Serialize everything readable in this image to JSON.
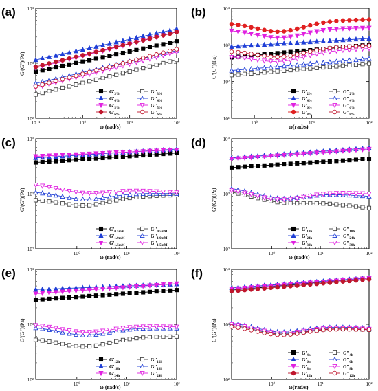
{
  "panels": [
    {
      "tag": "(a)",
      "xlabel": "ω (rad/s)",
      "ylabel": "G'(G'')(Pa)",
      "chart_data": {
        "type": "line",
        "xscale": "log",
        "yscale": "log",
        "xlim": [
          0.1,
          100
        ],
        "ylim": [
          100,
          10000
        ],
        "xticks": [
          "10⁻¹",
          "10⁰",
          "10¹",
          "10²"
        ],
        "yticks": [
          "10²",
          "10³",
          "10⁴"
        ],
        "legend_placement": "bottom-right",
        "series": [
          {
            "name": "G'",
            "sub": "3%",
            "color": "#000000",
            "marker": "square",
            "filled": true,
            "y0": 700,
            "y1": 2500
          },
          {
            "name": "G''",
            "sub": "3%",
            "color": "#444444",
            "marker": "square",
            "filled": false,
            "y0": 270,
            "y1": 1150
          },
          {
            "name": "G'",
            "sub": "4%",
            "color": "#1f3fd6",
            "marker": "triangle",
            "filled": true,
            "y0": 1150,
            "y1": 4200
          },
          {
            "name": "G''",
            "sub": "4%",
            "color": "#1f3fd6",
            "marker": "triangle",
            "filled": false,
            "y0": 430,
            "y1": 1700
          },
          {
            "name": "G'",
            "sub": "5%",
            "color": "#e020e0",
            "marker": "tri-down",
            "filled": true,
            "y0": 820,
            "y1": 3700
          },
          {
            "name": "G''",
            "sub": "5%",
            "color": "#e020e0",
            "marker": "tri-down",
            "filled": false,
            "y0": 360,
            "y1": 1600
          },
          {
            "name": "G'",
            "sub": "6%",
            "color": "#c0162d",
            "marker": "circle",
            "filled": true,
            "y0": 860,
            "y1": 3700
          },
          {
            "name": "G''",
            "sub": "6%",
            "color": "#c0162d",
            "marker": "circle",
            "filled": false,
            "y0": 380,
            "y1": 1800
          }
        ]
      }
    },
    {
      "tag": "(b)",
      "xlabel": "ω(rad/s)",
      "ylabel": "G'(G'')(Pa)",
      "chart_data": {
        "type": "line",
        "xscale": "log",
        "yscale": "log",
        "xlim": [
          0.4,
          100
        ],
        "ylim": [
          10,
          10000
        ],
        "xticks": [
          "10⁰",
          "10¹",
          "10²"
        ],
        "yticks": [
          "10¹",
          "10²",
          "10³",
          "10⁴"
        ],
        "legend_placement": "bottom-right",
        "series": [
          {
            "name": "G'",
            "sub": "2%",
            "color": "#000000",
            "marker": "square",
            "filled": true,
            "y0": 460,
            "y1": 1000
          },
          {
            "name": "G''",
            "sub": "2%",
            "color": "#444444",
            "marker": "square",
            "filled": false,
            "y0": 150,
            "y1": 310
          },
          {
            "name": "G'",
            "sub": "4%",
            "color": "#1f3fd6",
            "marker": "triangle",
            "filled": true,
            "y0": 900,
            "y1": 1500
          },
          {
            "name": "G''",
            "sub": "4%",
            "color": "#1f3fd6",
            "marker": "triangle",
            "filled": false,
            "y0": 200,
            "y1": 420
          },
          {
            "name": "G'",
            "sub": "6%",
            "color": "#e020e0",
            "marker": "tri-down",
            "filled": true,
            "y0": 2600,
            "y1": 2900,
            "dip": 0.75
          },
          {
            "name": "G''",
            "sub": "6%",
            "color": "#e020e0",
            "marker": "tri-down",
            "filled": false,
            "y0": 500,
            "y1": 800,
            "dip": 0.7
          },
          {
            "name": "G'",
            "sub": "8%",
            "color": "#e02020",
            "marker": "circle",
            "filled": true,
            "y0": 4000,
            "y1": 4900,
            "dip": 0.85
          },
          {
            "name": "G''",
            "sub": "8%",
            "color": "#c0162d",
            "marker": "circle",
            "filled": false,
            "y0": 700,
            "y1": 950,
            "dip": 0.7
          }
        ]
      }
    },
    {
      "tag": "(c)",
      "xlabel": "ω (rad/s)",
      "ylabel": "G'(G'')(Pa)",
      "chart_data": {
        "type": "line",
        "xscale": "log",
        "yscale": "log",
        "xlim": [
          0.15,
          100
        ],
        "ylim": [
          100,
          10000
        ],
        "xticks": [
          "10⁰",
          "10¹",
          "10²"
        ],
        "yticks": [
          "10²",
          "10³",
          "10⁴"
        ],
        "legend_placement": "bottom-right",
        "series": [
          {
            "name": "G'",
            "sub": "0.5mM",
            "color": "#000000",
            "marker": "square",
            "filled": true,
            "y0": 3700,
            "y1": 5500
          },
          {
            "name": "G''",
            "sub": "0.5mM",
            "color": "#444444",
            "marker": "square",
            "filled": false,
            "y0": 800,
            "y1": 950,
            "dip": 0.45
          },
          {
            "name": "G'",
            "sub": "1.0mM",
            "color": "#1f3fd6",
            "marker": "triangle",
            "filled": true,
            "y0": 4500,
            "y1": 6500
          },
          {
            "name": "G''",
            "sub": "1.0mM",
            "color": "#1f3fd6",
            "marker": "triangle",
            "filled": false,
            "y0": 1100,
            "y1": 1000,
            "dip": 0.4
          },
          {
            "name": "G'",
            "sub": "1.5mM",
            "color": "#e020e0",
            "marker": "tri-down",
            "filled": true,
            "y0": 4800,
            "y1": 6300
          },
          {
            "name": "G''",
            "sub": "1.5mM",
            "color": "#e020e0",
            "marker": "tri-down",
            "filled": false,
            "y0": 1500,
            "y1": 1050,
            "dip": 0.35
          }
        ]
      }
    },
    {
      "tag": "(d)",
      "xlabel": "ω (rad/s)",
      "ylabel": "G'(G'')(Pa)",
      "chart_data": {
        "type": "line",
        "xscale": "log",
        "yscale": "log",
        "xlim": [
          0.15,
          100
        ],
        "ylim": [
          100,
          10000
        ],
        "xticks": [
          "10⁰",
          "10¹",
          "10²"
        ],
        "yticks": [
          "10²",
          "10³",
          "10⁴"
        ],
        "legend_placement": "bottom-right",
        "series": [
          {
            "name": "G'",
            "sub": "18h",
            "color": "#000000",
            "marker": "square",
            "filled": true,
            "y0": 3000,
            "y1": 4300
          },
          {
            "name": "G''",
            "sub": "18h",
            "color": "#444444",
            "marker": "square",
            "filled": false,
            "y0": 1100,
            "y1": 550,
            "dip": 0.3
          },
          {
            "name": "G'",
            "sub": "24h",
            "color": "#1f3fd6",
            "marker": "triangle",
            "filled": true,
            "y0": 4500,
            "y1": 6800
          },
          {
            "name": "G''",
            "sub": "24h",
            "color": "#1f3fd6",
            "marker": "triangle",
            "filled": false,
            "y0": 1300,
            "y1": 900,
            "dip": 0.45
          },
          {
            "name": "G'",
            "sub": "30h",
            "color": "#e020e0",
            "marker": "tri-down",
            "filled": true,
            "y0": 4300,
            "y1": 6500
          },
          {
            "name": "G''",
            "sub": "30h",
            "color": "#e020e0",
            "marker": "tri-down",
            "filled": false,
            "y0": 1200,
            "y1": 1000,
            "dip": 0.5
          }
        ]
      }
    },
    {
      "tag": "(e)",
      "xlabel": "ω (rad/s)",
      "ylabel": "G'(G'')(Pa)",
      "chart_data": {
        "type": "line",
        "xscale": "log",
        "yscale": "log",
        "xlim": [
          0.15,
          100
        ],
        "ylim": [
          100,
          10000
        ],
        "xticks": [
          "10⁰",
          "10¹",
          "10²"
        ],
        "yticks": [
          "10²",
          "10³",
          "10⁴"
        ],
        "legend_placement": "bottom-right",
        "series": [
          {
            "name": "G'",
            "sub": "12h",
            "color": "#000000",
            "marker": "square",
            "filled": true,
            "y0": 2800,
            "y1": 4200
          },
          {
            "name": "G''",
            "sub": "12h",
            "color": "#444444",
            "marker": "square",
            "filled": false,
            "y0": 550,
            "y1": 600,
            "dip": 0.5
          },
          {
            "name": "G'",
            "sub": "18h",
            "color": "#1f3fd6",
            "marker": "triangle",
            "filled": true,
            "y0": 4300,
            "y1": 5400
          },
          {
            "name": "G''",
            "sub": "18h",
            "color": "#1f3fd6",
            "marker": "triangle",
            "filled": false,
            "y0": 900,
            "y1": 850,
            "dip": 0.45
          },
          {
            "name": "G'",
            "sub": "24h",
            "color": "#e020e0",
            "marker": "tri-down",
            "filled": true,
            "y0": 3600,
            "y1": 5500
          },
          {
            "name": "G''",
            "sub": "24h",
            "color": "#e020e0",
            "marker": "tri-down",
            "filled": false,
            "y0": 1000,
            "y1": 900,
            "dip": 0.4
          }
        ]
      }
    },
    {
      "tag": "(f)",
      "xlabel": "ω(rad/s)",
      "ylabel": "G'(G'')(Pa)",
      "chart_data": {
        "type": "line",
        "xscale": "log",
        "yscale": "log",
        "xlim": [
          0.15,
          100
        ],
        "ylim": [
          100,
          10000
        ],
        "xticks": [
          "10⁰",
          "10¹",
          "10²"
        ],
        "yticks": [
          "10²",
          "10³",
          "10⁴"
        ],
        "legend_placement": "bottom-right",
        "series": [
          {
            "name": "G'",
            "sub": "4h",
            "color": "#000000",
            "marker": "square",
            "filled": true,
            "y0": 4200,
            "y1": 6900
          },
          {
            "name": "G''",
            "sub": "4h",
            "color": "#444444",
            "marker": "square",
            "filled": false,
            "y0": 1000,
            "y1": 800,
            "dip": 0.45
          },
          {
            "name": "G'",
            "sub": "6h",
            "color": "#1f3fd6",
            "marker": "triangle",
            "filled": true,
            "y0": 4600,
            "y1": 7000
          },
          {
            "name": "G''",
            "sub": "6h",
            "color": "#1f3fd6",
            "marker": "triangle",
            "filled": false,
            "y0": 1100,
            "y1": 850,
            "dip": 0.45
          },
          {
            "name": "G'",
            "sub": "8h",
            "color": "#e020e0",
            "marker": "tri-down",
            "filled": true,
            "y0": 4400,
            "y1": 6900
          },
          {
            "name": "G''",
            "sub": "8h",
            "color": "#e020e0",
            "marker": "tri-down",
            "filled": false,
            "y0": 1050,
            "y1": 820,
            "dip": 0.45
          },
          {
            "name": "G'",
            "sub": "12h",
            "color": "#c0162d",
            "marker": "circle",
            "filled": true,
            "y0": 4000,
            "y1": 6600
          },
          {
            "name": "G''",
            "sub": "12h",
            "color": "#c0162d",
            "marker": "circle",
            "filled": false,
            "y0": 950,
            "y1": 800,
            "dip": 0.45
          }
        ]
      }
    }
  ]
}
